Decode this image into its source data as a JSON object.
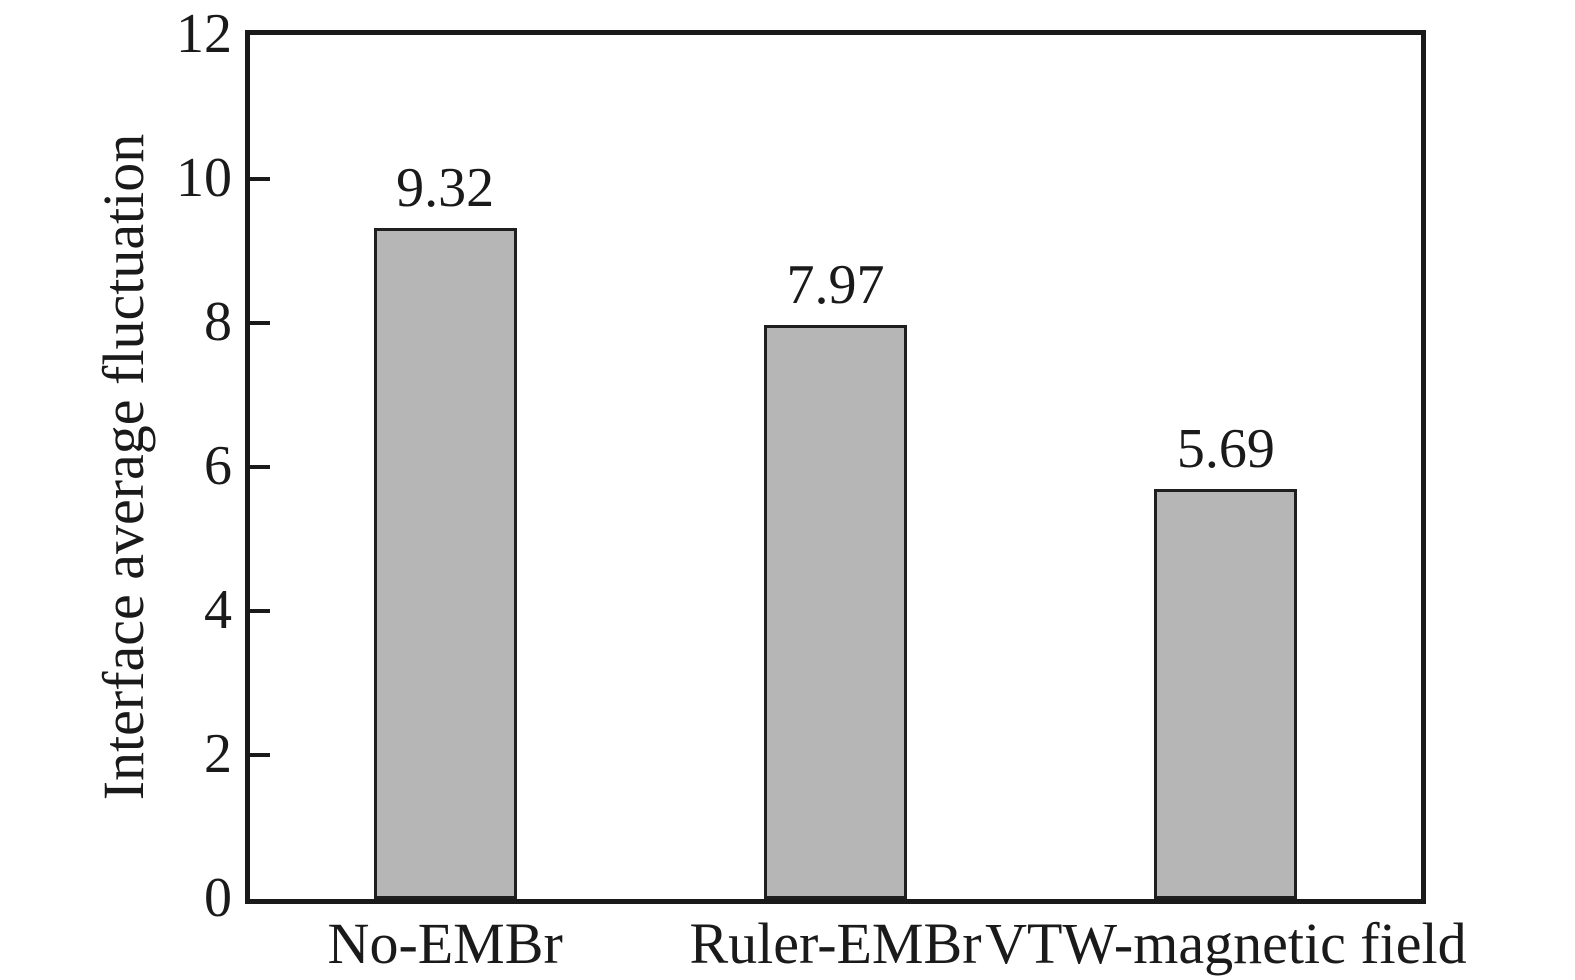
{
  "chart_data": {
    "type": "bar",
    "title": "",
    "xlabel": "",
    "ylabel": "Interface average fluctuation",
    "categories": [
      "No-EMBr",
      "Ruler-EMBr",
      "VTW-magnetic field"
    ],
    "values": [
      9.32,
      7.97,
      5.69
    ],
    "value_labels": [
      "9.32",
      "7.97",
      "5.69"
    ],
    "ylim": [
      0,
      12
    ],
    "yticks": [
      0,
      2,
      4,
      6,
      8,
      10,
      12
    ],
    "grid": false,
    "legend": "none",
    "colors": {
      "bar_fill": "#b6b6b6",
      "bar_border": "#1f1f1f",
      "axis": "#1a1a1a",
      "text": "#1a1a1a",
      "background": "#ffffff"
    }
  }
}
